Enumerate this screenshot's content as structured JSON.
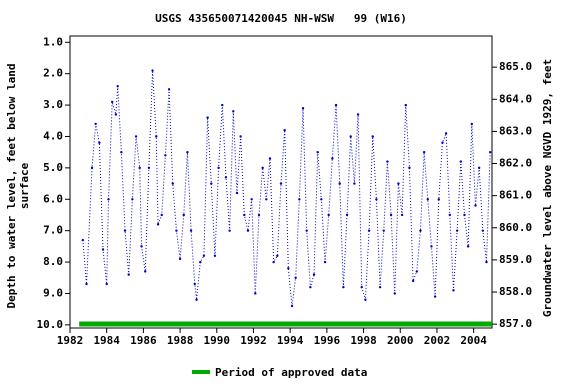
{
  "chart_data": {
    "type": "scatter",
    "title": "USGS 435650071420045 NH-WSW   99 (W16)",
    "ylabel": [
      "Depth to water level, feet below land",
      "surface"
    ],
    "y2label": "Groundwater level above NGVD 1929, feet",
    "xlim": [
      1982,
      2005
    ],
    "xticks": [
      1982,
      1984,
      1986,
      1988,
      1990,
      1992,
      1994,
      1996,
      1998,
      2000,
      2002,
      2004
    ],
    "ylim": [
      0.8,
      10.1
    ],
    "inverted": true,
    "yticks": [
      {
        "value": 1,
        "label": "1.0"
      },
      {
        "value": 2,
        "label": "2.0"
      },
      {
        "value": 3,
        "label": "3.0"
      },
      {
        "value": 4,
        "label": "4.0"
      },
      {
        "value": 5,
        "label": "5.0"
      },
      {
        "value": 6,
        "label": "6.0"
      },
      {
        "value": 7,
        "label": "7.0"
      },
      {
        "value": 8,
        "label": "8.0"
      },
      {
        "value": 9,
        "label": "9.0"
      },
      {
        "value": 10,
        "label": "10.0"
      }
    ],
    "y2lim": [
      856.88,
      865.97
    ],
    "y2ticks": [
      {
        "value": 857,
        "label": "857.0"
      },
      {
        "value": 858,
        "label": "858.0"
      },
      {
        "value": 859,
        "label": "859.0"
      },
      {
        "value": 860,
        "label": "860.0"
      },
      {
        "value": 861,
        "label": "861.0"
      },
      {
        "value": 862,
        "label": "862.0"
      },
      {
        "value": 863,
        "label": "863.0"
      },
      {
        "value": 864,
        "label": "864.0"
      },
      {
        "value": 865,
        "label": "865.0"
      }
    ],
    "color": "#0000cc",
    "x": [
      1982.7,
      1982.9,
      1983.2,
      1983.4,
      1983.6,
      1983.8,
      1984.0,
      1984.1,
      1984.3,
      1984.5,
      1984.6,
      1984.8,
      1985.0,
      1985.2,
      1985.4,
      1985.6,
      1985.8,
      1985.9,
      1986.1,
      1986.3,
      1986.5,
      1986.7,
      1986.8,
      1987.0,
      1987.2,
      1987.4,
      1987.6,
      1987.8,
      1988.0,
      1988.2,
      1988.4,
      1988.6,
      1988.8,
      1988.9,
      1989.1,
      1989.3,
      1989.5,
      1989.7,
      1989.9,
      1990.1,
      1990.3,
      1990.5,
      1990.7,
      1990.9,
      1991.1,
      1991.3,
      1991.5,
      1991.7,
      1991.9,
      1992.1,
      1992.3,
      1992.5,
      1992.7,
      1992.9,
      1993.1,
      1993.3,
      1993.5,
      1993.7,
      1993.9,
      1994.1,
      1994.3,
      1994.5,
      1994.7,
      1994.9,
      1995.1,
      1995.3,
      1995.5,
      1995.7,
      1995.9,
      1996.1,
      1996.3,
      1996.5,
      1996.7,
      1996.9,
      1997.1,
      1997.3,
      1997.5,
      1997.7,
      1997.9,
      1998.1,
      1998.3,
      1998.5,
      1998.7,
      1998.9,
      1999.1,
      1999.3,
      1999.5,
      1999.7,
      1999.9,
      2000.1,
      2000.3,
      2000.5,
      2000.7,
      2000.9,
      2001.1,
      2001.3,
      2001.5,
      2001.7,
      2001.9,
      2002.1,
      2002.3,
      2002.5,
      2002.7,
      2002.9,
      2003.1,
      2003.3,
      2003.5,
      2003.7,
      2003.9,
      2004.1,
      2004.3,
      2004.5,
      2004.7,
      2004.9
    ],
    "values": [
      7.3,
      8.7,
      5.0,
      3.6,
      4.2,
      7.6,
      8.7,
      6.0,
      2.9,
      3.3,
      2.4,
      4.5,
      7.0,
      8.4,
      6.0,
      4.0,
      5.0,
      7.5,
      8.3,
      5.0,
      1.9,
      4.0,
      6.8,
      6.5,
      4.6,
      2.5,
      5.5,
      7.0,
      7.9,
      6.5,
      4.5,
      7.0,
      8.7,
      9.2,
      8.0,
      7.8,
      3.4,
      5.5,
      7.8,
      5.0,
      3.0,
      5.3,
      7.0,
      3.2,
      5.8,
      4.0,
      6.5,
      7.0,
      6.0,
      9.0,
      6.5,
      5.0,
      6.0,
      4.7,
      8.0,
      7.8,
      5.5,
      3.8,
      8.2,
      9.4,
      8.5,
      6.0,
      3.1,
      7.0,
      8.8,
      8.4,
      4.5,
      6.0,
      8.0,
      6.5,
      4.7,
      3.0,
      5.5,
      8.8,
      6.5,
      4.0,
      5.5,
      3.3,
      8.8,
      9.2,
      7.0,
      4.0,
      6.0,
      8.8,
      7.0,
      4.8,
      6.5,
      9.0,
      5.5,
      6.5,
      3.0,
      5.0,
      8.6,
      8.3,
      7.0,
      4.5,
      6.0,
      7.5,
      9.1,
      6.0,
      4.2,
      3.9,
      6.5,
      8.9,
      7.0,
      4.8,
      6.5,
      7.5,
      3.6,
      6.2,
      5.0,
      7.0,
      8.0,
      4.5
    ],
    "approved_label": "Period of approved data",
    "approved_color": "#00aa00",
    "approved_period": [
      1982.5,
      2005
    ]
  }
}
